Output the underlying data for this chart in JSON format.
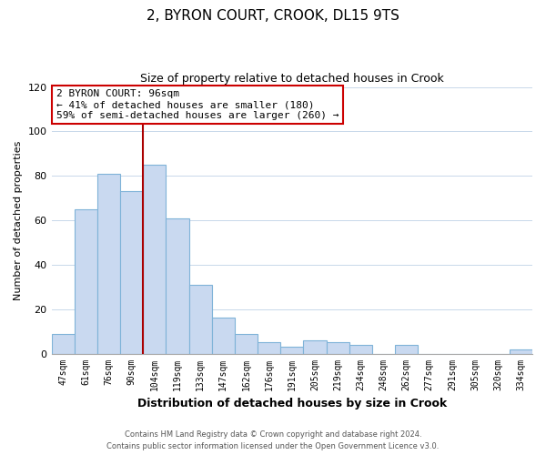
{
  "title": "2, BYRON COURT, CROOK, DL15 9TS",
  "subtitle": "Size of property relative to detached houses in Crook",
  "xlabel": "Distribution of detached houses by size in Crook",
  "ylabel": "Number of detached properties",
  "categories": [
    "47sqm",
    "61sqm",
    "76sqm",
    "90sqm",
    "104sqm",
    "119sqm",
    "133sqm",
    "147sqm",
    "162sqm",
    "176sqm",
    "191sqm",
    "205sqm",
    "219sqm",
    "234sqm",
    "248sqm",
    "262sqm",
    "277sqm",
    "291sqm",
    "305sqm",
    "320sqm",
    "334sqm"
  ],
  "values": [
    9,
    65,
    81,
    73,
    85,
    61,
    31,
    16,
    9,
    5,
    3,
    6,
    5,
    4,
    0,
    4,
    0,
    0,
    0,
    0,
    2
  ],
  "bar_color": "#c9d9f0",
  "bar_edge_color": "#7fb3d8",
  "ylim": [
    0,
    120
  ],
  "yticks": [
    0,
    20,
    40,
    60,
    80,
    100,
    120
  ],
  "vline_color": "#aa0000",
  "annotation_title": "2 BYRON COURT: 96sqm",
  "annotation_line1": "← 41% of detached houses are smaller (180)",
  "annotation_line2": "59% of semi-detached houses are larger (260) →",
  "annotation_box_color": "#ffffff",
  "annotation_box_edge": "#cc0000",
  "footer_line1": "Contains HM Land Registry data © Crown copyright and database right 2024.",
  "footer_line2": "Contains public sector information licensed under the Open Government Licence v3.0.",
  "background_color": "#ffffff",
  "grid_color": "#c8d8ea",
  "title_fontsize": 11,
  "subtitle_fontsize": 9,
  "vline_bar_idx": 3.5
}
